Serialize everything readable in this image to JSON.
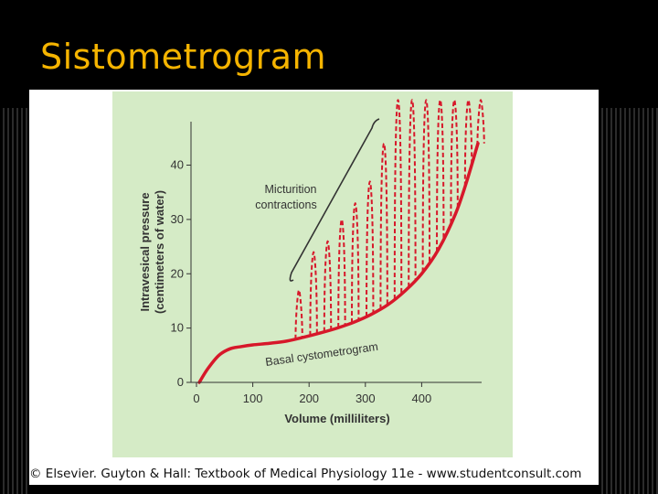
{
  "slide": {
    "title": "Sistometrogram",
    "copyright": "© Elsevier. Guyton & Hall: Textbook of Medical Physiology 11e - www.studentconsult.com"
  },
  "chart_data": {
    "type": "line",
    "title": "",
    "xlabel": "Volume (milliliters)",
    "ylabel_line1": "Intravesical pressure",
    "ylabel_line2": "(centimeters of water)",
    "xlim": [
      0,
      500
    ],
    "ylim": [
      0,
      48
    ],
    "x_ticks": [
      0,
      100,
      200,
      300,
      400
    ],
    "y_ticks": [
      0,
      10,
      20,
      30,
      40
    ],
    "grid": false,
    "series": [
      {
        "name": "Basal cystometrogram",
        "style": "solid",
        "color": "#d7182a",
        "x": [
          5,
          20,
          40,
          60,
          80,
          100,
          130,
          160,
          190,
          220,
          250,
          280,
          310,
          340,
          370,
          400,
          430,
          460,
          480,
          500
        ],
        "y": [
          0,
          2.5,
          5,
          6.2,
          6.6,
          6.9,
          7.2,
          7.6,
          8.3,
          9.1,
          10,
          11.1,
          12.5,
          14.3,
          16.8,
          20,
          24.5,
          31,
          37,
          44
        ]
      }
    ],
    "micturition_contractions": {
      "color": "#d7182a",
      "style": "dashed",
      "peaks": [
        {
          "x": 182,
          "y": 17
        },
        {
          "x": 208,
          "y": 24
        },
        {
          "x": 233,
          "y": 26
        },
        {
          "x": 258,
          "y": 30
        },
        {
          "x": 282,
          "y": 33
        },
        {
          "x": 308,
          "y": 37
        },
        {
          "x": 333,
          "y": 44
        },
        {
          "x": 358,
          "y": 52
        },
        {
          "x": 383,
          "y": 52
        },
        {
          "x": 408,
          "y": 52
        },
        {
          "x": 433,
          "y": 52
        },
        {
          "x": 458,
          "y": 52
        },
        {
          "x": 483,
          "y": 52
        },
        {
          "x": 505,
          "y": 52
        }
      ]
    },
    "annotations": {
      "micturition_line1": "Micturition",
      "micturition_line2": "contractions",
      "basal": "Basal cystometrogram"
    }
  }
}
